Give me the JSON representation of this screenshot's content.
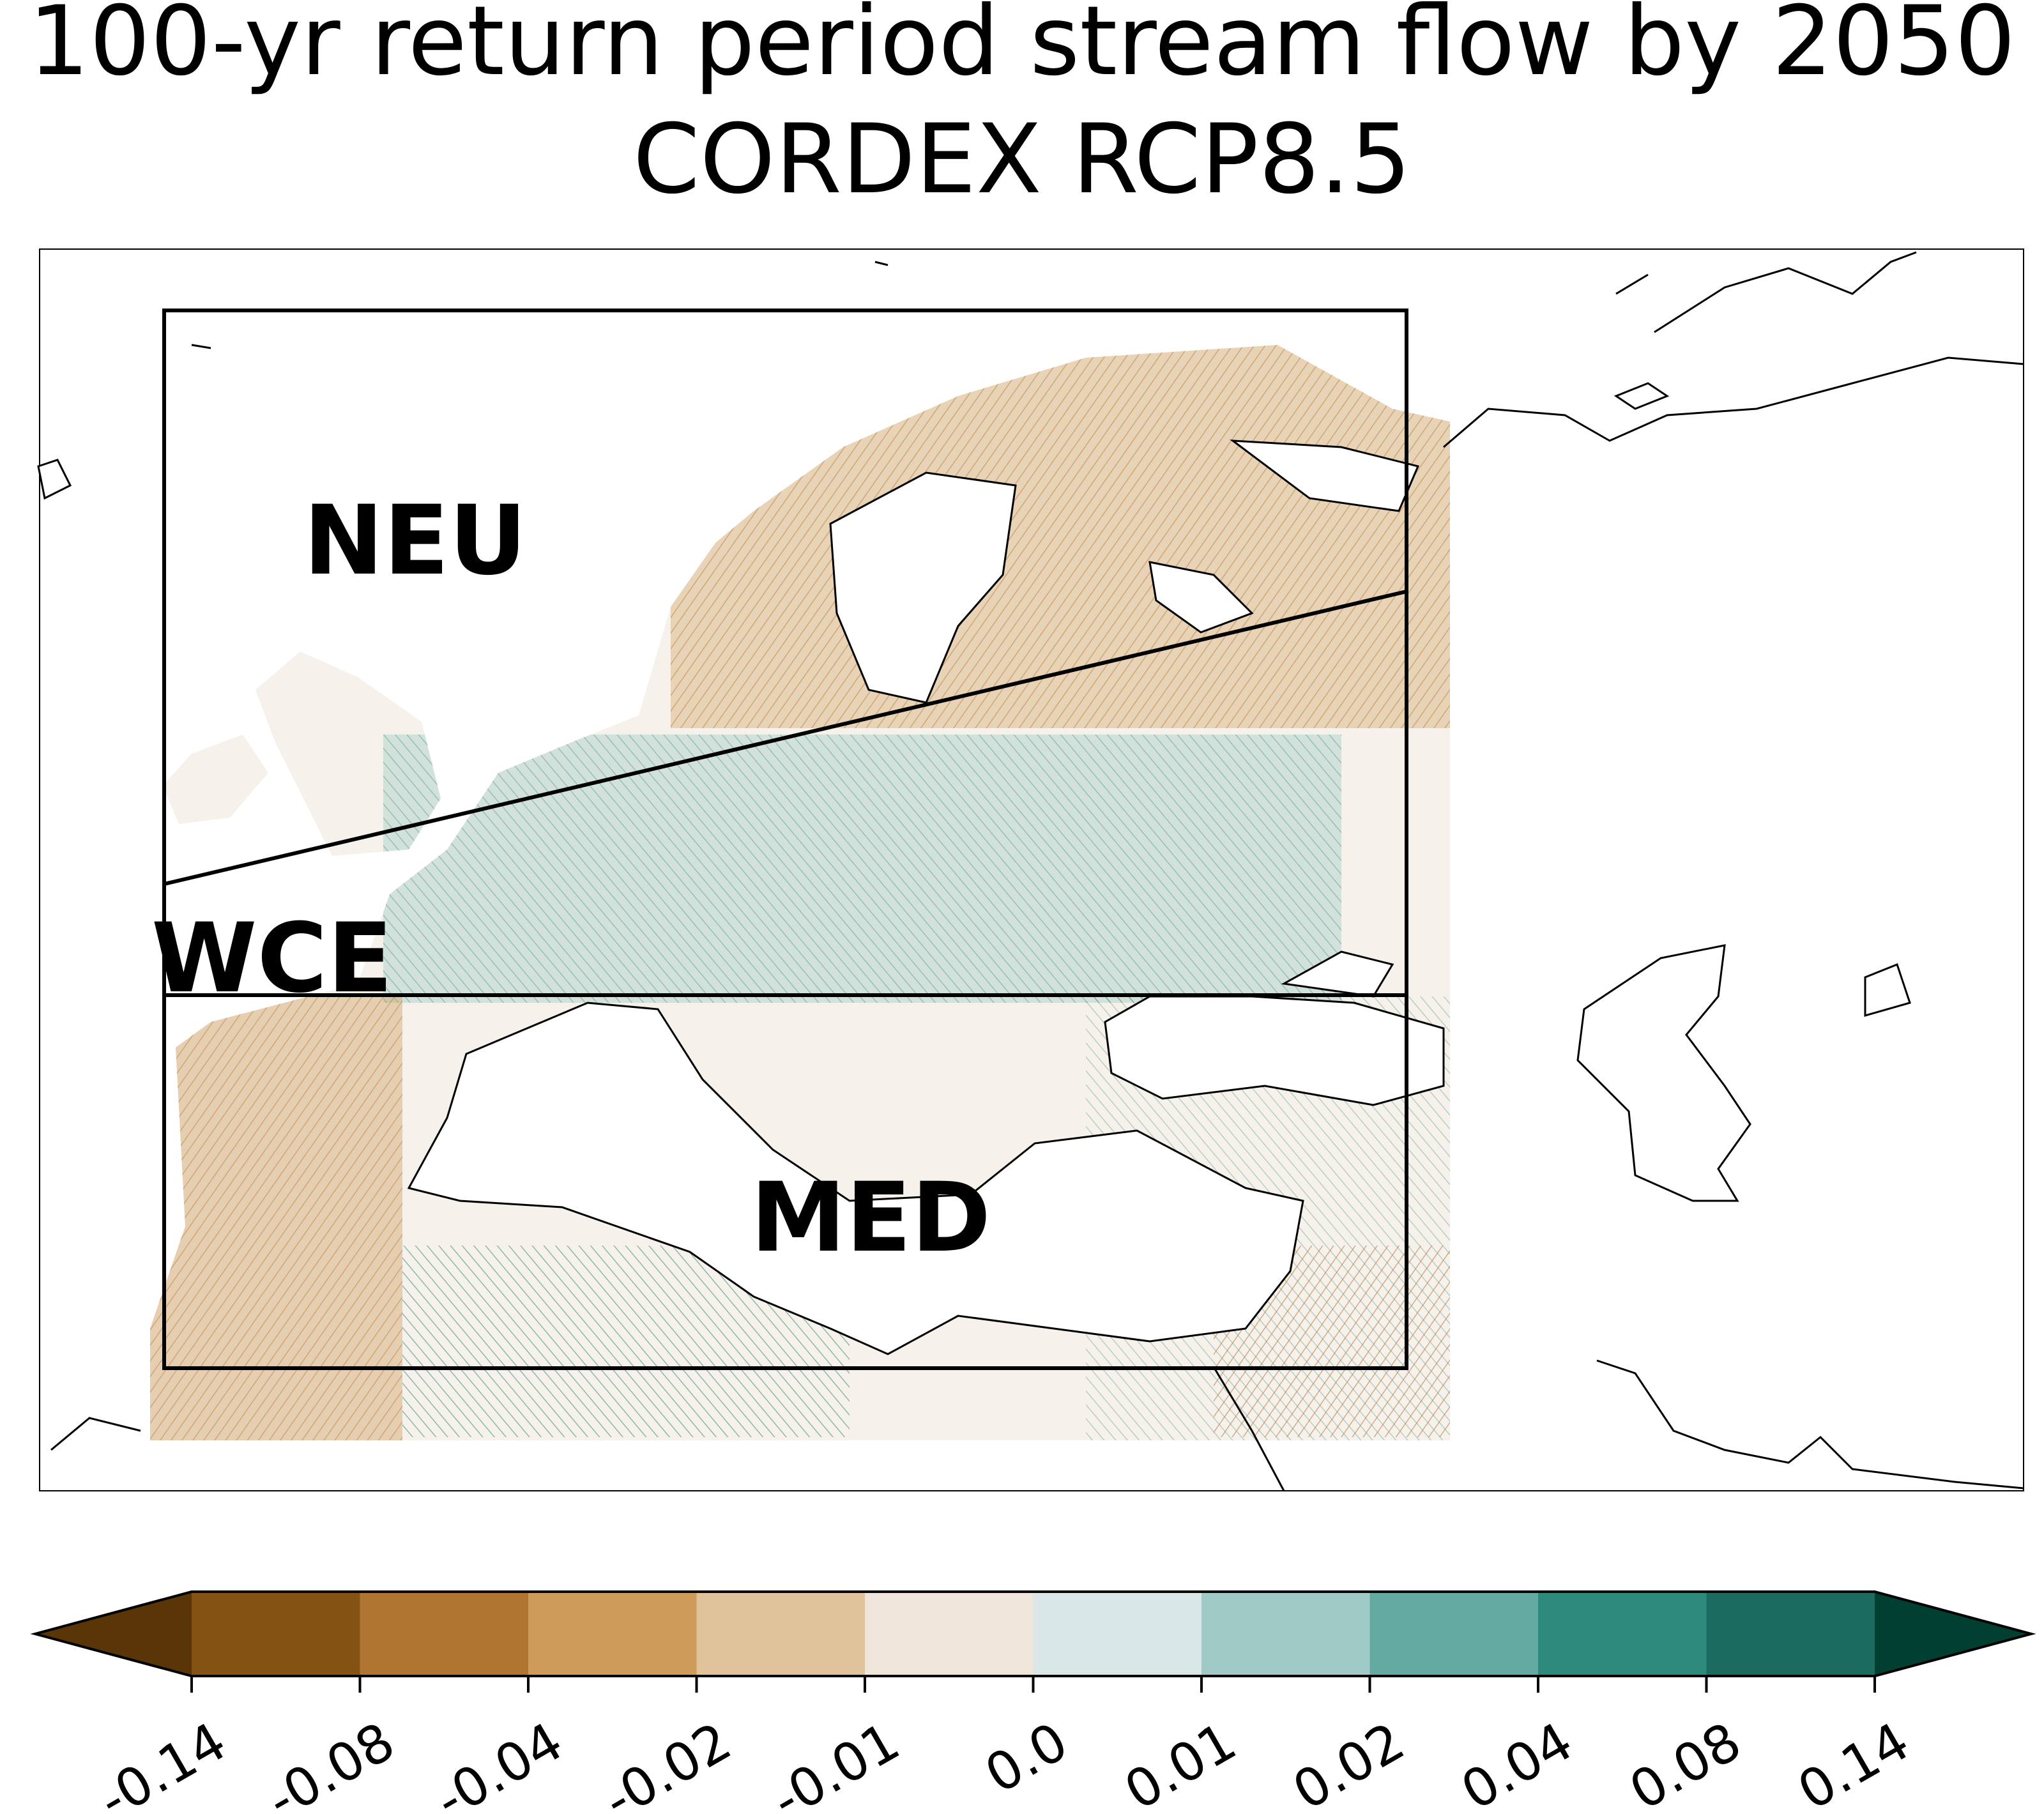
{
  "title": {
    "line1": "100-yr return period stream flow by 2050",
    "line2": "CORDEX RCP8.5"
  },
  "regions": [
    {
      "label": "NEU"
    },
    {
      "label": "WCE"
    },
    {
      "label": "MED"
    }
  ],
  "colorbar": {
    "ticks": [
      "-0.14",
      "-0.08",
      "-0.04",
      "-0.02",
      "-0.01",
      "0.0",
      "0.01",
      "0.02",
      "0.04",
      "0.08",
      "0.14"
    ],
    "colors": [
      "#5a3507",
      "#845313",
      "#b07530",
      "#cf9b5a",
      "#e0c39b",
      "#efe5d9",
      "#d9e8e6",
      "#9fcac6",
      "#64aaa2",
      "#2f8a7e",
      "#1b6b5e",
      "#003f32"
    ],
    "extend": "both"
  },
  "colors": {
    "drier": "#b07530",
    "wetter": "#2f8a7e",
    "outline": "#000000"
  }
}
